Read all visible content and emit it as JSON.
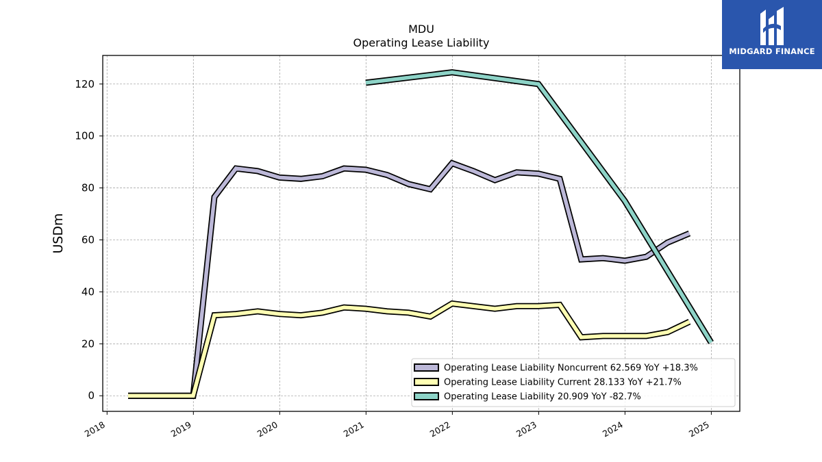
{
  "chart_data": {
    "type": "line",
    "title": "MDU",
    "subtitle": "Operating Lease Liability",
    "xlabel": "",
    "ylabel": "USDm",
    "x_ticks": [
      "2018",
      "2019",
      "2020",
      "2021",
      "2022",
      "2023",
      "2024",
      "2025"
    ],
    "y_ticks": [
      0,
      20,
      40,
      60,
      80,
      100,
      120
    ],
    "xlim": [
      2017.95,
      2025.33
    ],
    "ylim": [
      -6,
      131
    ],
    "grid": true,
    "legend_position": "bottom-right",
    "series": [
      {
        "name": "Operating Lease Liability Noncurrent",
        "legend": "Operating Lease Liability Noncurrent  62.569 YoY +18.3%",
        "color": "#bcb8d8",
        "x": [
          "2018-03-31",
          "2018-06-30",
          "2018-09-30",
          "2018-12-31",
          "2019-03-31",
          "2019-06-30",
          "2019-09-30",
          "2019-12-31",
          "2020-03-31",
          "2020-06-30",
          "2020-09-30",
          "2020-12-31",
          "2021-03-31",
          "2021-06-30",
          "2021-09-30",
          "2021-12-31",
          "2022-03-31",
          "2022-06-30",
          "2022-09-30",
          "2022-12-31",
          "2023-03-31",
          "2023-06-30",
          "2023-09-30",
          "2023-12-31",
          "2024-03-31",
          "2024-06-30",
          "2024-09-30"
        ],
        "y": [
          0,
          0,
          0,
          0,
          76.5,
          87.5,
          86.5,
          84,
          83.5,
          84.5,
          87.5,
          87,
          85,
          81.5,
          79.5,
          89.5,
          86.5,
          83,
          86,
          85.5,
          83.5,
          52.5,
          53,
          52,
          53.5,
          59,
          62.5
        ]
      },
      {
        "name": "Operating Lease Liability Current",
        "legend": "Operating Lease Liability Current  28.133 YoY +21.7%",
        "color": "#ffffb3",
        "x": [
          "2018-03-31",
          "2018-06-30",
          "2018-09-30",
          "2018-12-31",
          "2019-03-31",
          "2019-06-30",
          "2019-09-30",
          "2019-12-31",
          "2020-03-31",
          "2020-06-30",
          "2020-09-30",
          "2020-12-31",
          "2021-03-31",
          "2021-06-30",
          "2021-09-30",
          "2021-12-31",
          "2022-03-31",
          "2022-06-30",
          "2022-09-30",
          "2022-12-31",
          "2023-03-31",
          "2023-06-30",
          "2023-09-30",
          "2023-12-31",
          "2024-03-31",
          "2024-06-30",
          "2024-09-30"
        ],
        "y": [
          0,
          0,
          0,
          0,
          31,
          31.5,
          32.5,
          31.5,
          31,
          32,
          34,
          33.5,
          32.5,
          32,
          30.5,
          35.5,
          34.5,
          33.5,
          34.5,
          34.5,
          35,
          22.5,
          23,
          23,
          23,
          24.5,
          28.5
        ]
      },
      {
        "name": "Operating Lease Liability",
        "legend": "Operating Lease Liability  20.909 YoY -82.7%",
        "color": "#8dd3c7",
        "x": [
          "2020-12-31",
          "2021-12-31",
          "2022-12-31",
          "2023-12-31",
          "2024-12-31"
        ],
        "y": [
          120.5,
          124.5,
          120,
          75,
          20.5
        ]
      }
    ]
  },
  "logo": {
    "text": "MIDGARD FINANCE",
    "color": "#2a56ad"
  }
}
